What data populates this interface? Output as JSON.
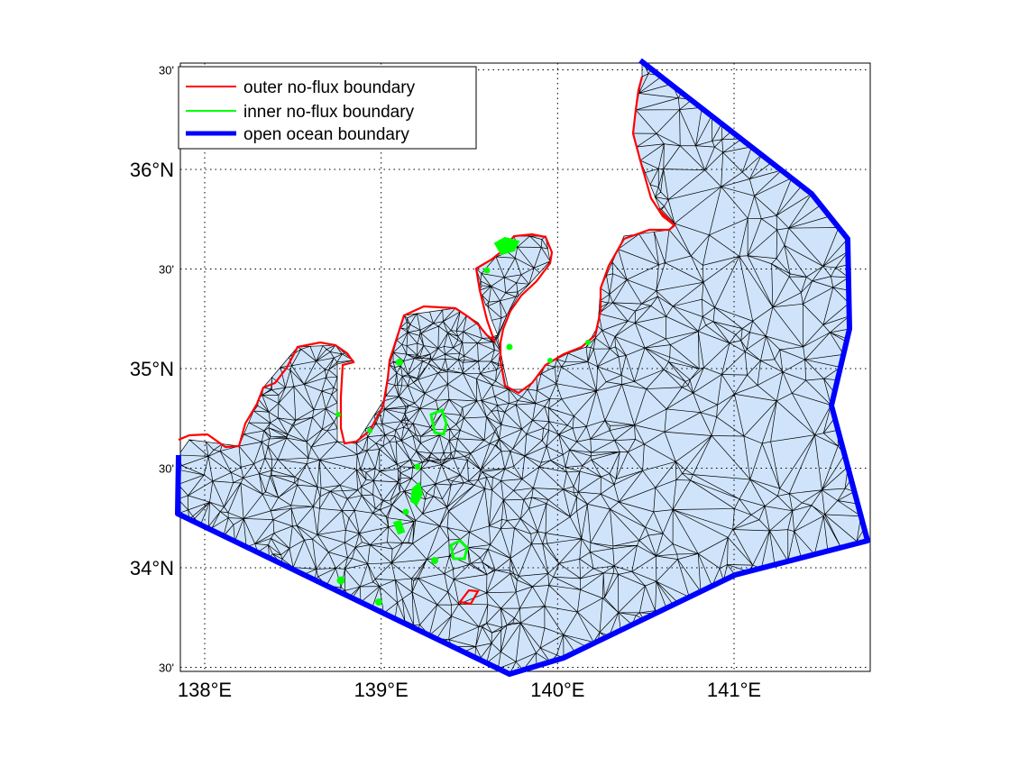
{
  "map": {
    "x_ticks": [
      {
        "label": "138°E",
        "lon": 138.0
      },
      {
        "label": "139°E",
        "lon": 139.0
      },
      {
        "label": "140°E",
        "lon": 140.0
      },
      {
        "label": "141°E",
        "lon": 141.0
      }
    ],
    "y_ticks": [
      {
        "label": "30'",
        "lat": 36.5,
        "size": "small"
      },
      {
        "label": "36°N",
        "lat": 36.0,
        "size": "big"
      },
      {
        "label": "30'",
        "lat": 35.5,
        "size": "small"
      },
      {
        "label": "35°N",
        "lat": 35.0,
        "size": "big"
      },
      {
        "label": "30'",
        "lat": 34.5,
        "size": "small"
      },
      {
        "label": "34°N",
        "lat": 34.0,
        "size": "big"
      },
      {
        "label": "30'",
        "lat": 33.5,
        "size": "small"
      }
    ],
    "legend": {
      "placement": "top-left",
      "entries": [
        {
          "label": "outer no-flux boundary",
          "color": "#ff0000"
        },
        {
          "label": "inner no-flux boundary",
          "color": "#00ff00"
        },
        {
          "label": "open ocean boundary",
          "color": "#0000ff"
        }
      ]
    },
    "colors": {
      "ocean_fill": "#cfe4fb",
      "mesh": "#000000",
      "outer_boundary": "#ff0000",
      "inner_boundary": "#00ff00",
      "open_boundary": "#0000ff"
    },
    "grid": true
  }
}
